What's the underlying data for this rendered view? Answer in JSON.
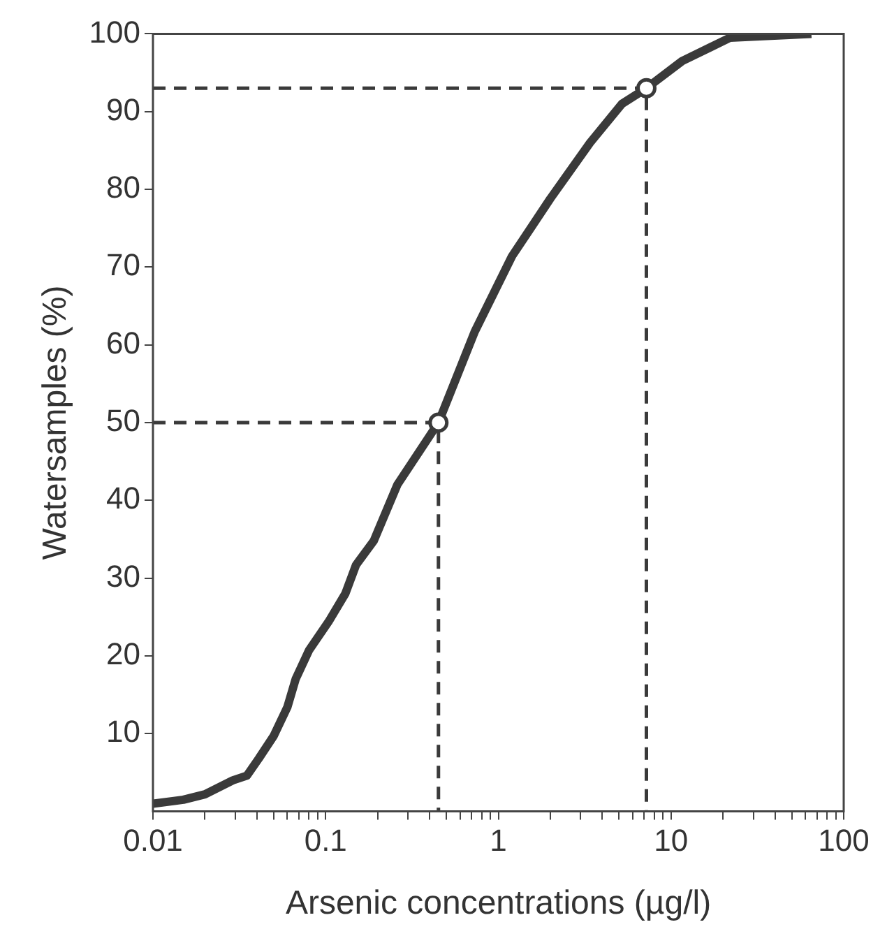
{
  "chart_data": {
    "type": "line",
    "xlabel": "Arsenic concentrations (µg/l)",
    "ylabel": "Watersamples (%)",
    "log": "x",
    "grid": false,
    "legend": false,
    "xlim": [
      0.01,
      100
    ],
    "ylim": [
      0,
      100
    ],
    "xticks": [
      0.01,
      {
        "value": 0.02,
        "label": null
      },
      {
        "value": 0.03,
        "label": null
      },
      {
        "value": 0.04,
        "label": null
      },
      {
        "value": 0.05,
        "label": null
      },
      {
        "value": 0.06,
        "label": null
      },
      {
        "value": 0.07,
        "label": null
      },
      {
        "value": 0.08,
        "label": null
      },
      {
        "value": 0.09,
        "label": null
      },
      0.1,
      {
        "value": 0.2,
        "label": null
      },
      {
        "value": 0.3,
        "label": null
      },
      {
        "value": 0.4,
        "label": null
      },
      {
        "value": 0.5,
        "label": null
      },
      {
        "value": 0.6,
        "label": null
      },
      {
        "value": 0.7,
        "label": null
      },
      {
        "value": 0.8,
        "label": null
      },
      {
        "value": 0.9,
        "label": null
      },
      1,
      {
        "value": 2,
        "label": null
      },
      {
        "value": 3,
        "label": null
      },
      {
        "value": 4,
        "label": null
      },
      {
        "value": 5,
        "label": null
      },
      {
        "value": 6,
        "label": null
      },
      {
        "value": 7,
        "label": null
      },
      {
        "value": 8,
        "label": null
      },
      {
        "value": 9,
        "label": null
      },
      10,
      {
        "value": 20,
        "label": null
      },
      {
        "value": 30,
        "label": null
      },
      {
        "value": 40,
        "label": null
      },
      {
        "value": 50,
        "label": null
      },
      {
        "value": 60,
        "label": null
      },
      {
        "value": 70,
        "label": null
      },
      {
        "value": 80,
        "label": null
      },
      {
        "value": 90,
        "label": null
      },
      100
    ],
    "yticks": [
      10,
      20,
      30,
      40,
      50,
      60,
      70,
      80,
      90,
      100
    ],
    "series": [
      {
        "color": "#3a3a3a",
        "marker": "none",
        "line_style": "solid",
        "x": [
          0.01,
          0.015,
          0.02,
          0.029,
          0.035,
          0.041,
          0.05,
          0.06,
          0.067,
          0.08,
          0.104,
          0.13,
          0.15,
          0.19,
          0.26,
          0.45,
          0.73,
          1.2,
          2,
          3.4,
          5.2,
          7.2,
          11.6,
          22,
          65
        ],
        "values": [
          1,
          1.5,
          2.2,
          4,
          4.6,
          6.8,
          9.7,
          13.4,
          17,
          20.7,
          24.4,
          28,
          31.7,
          34.8,
          42,
          50,
          61.7,
          71.4,
          78.8,
          86,
          91,
          93,
          96.5,
          99.5,
          100
        ]
      },
      {
        "color": "#3a3a3a",
        "marker": "none",
        "line_style": "dashed",
        "x": [
          0.01,
          0.45,
          0.45
        ],
        "values": [
          50,
          50,
          0
        ]
      },
      {
        "color": "#3a3a3a",
        "marker": "none",
        "line_style": "dashed",
        "x": [
          0.01,
          7.2,
          7.2
        ],
        "values": [
          93,
          93,
          0
        ]
      },
      {
        "type": "scatter",
        "color": "#3a3a3a",
        "marker": "circle",
        "x": [
          0.45,
          7.2
        ],
        "values": [
          50,
          93
        ]
      }
    ]
  }
}
